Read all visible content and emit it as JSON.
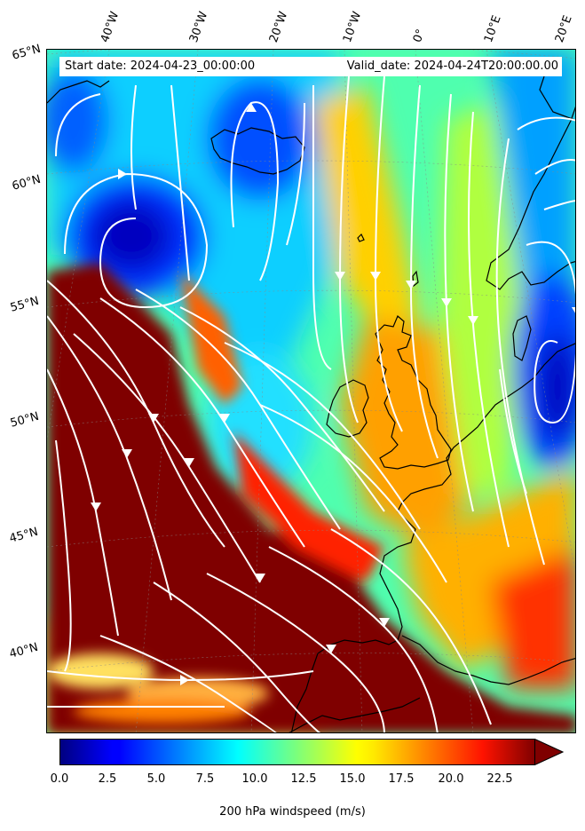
{
  "header": {
    "start_date": "Start date: 2024-04-23_00:00:00",
    "valid_date": "Valid_date: 2024-04-24T20:00:00.00"
  },
  "lon_labels": [
    "40°W",
    "30°W",
    "20°W",
    "10°W",
    "0°",
    "10°E",
    "20°E"
  ],
  "lat_labels": [
    "65°N",
    "60°N",
    "55°N",
    "50°N",
    "45°N",
    "40°N"
  ],
  "colorbar": {
    "title": "200 hPa windspeed (m/s)",
    "ticks": [
      "0.0",
      "2.5",
      "5.0",
      "7.5",
      "10.0",
      "12.5",
      "15.0",
      "17.5",
      "20.0",
      "22.5"
    ],
    "min": 0,
    "max": 25,
    "extend": "max",
    "colormap": "jet"
  },
  "colors": {
    "strong_wind": "#7f0000",
    "weak_wind": "#00008f",
    "streamline": "#ffffff",
    "coastline": "#000000"
  }
}
